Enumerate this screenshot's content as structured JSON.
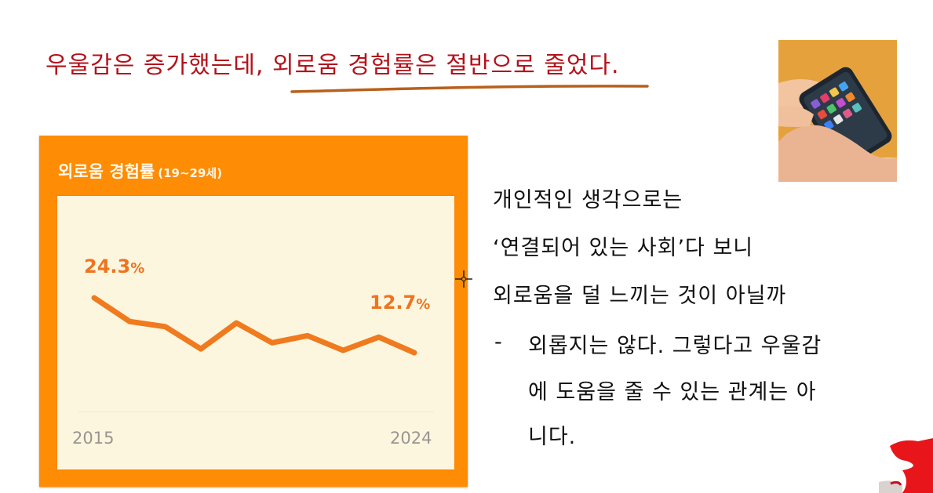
{
  "slide": {
    "headline": "우울감은 증가했는데, 외로움 경험률은 절반으로 줄었다.",
    "colors": {
      "headline": "#b3121b",
      "underline": "#b8601c",
      "card_bg": "#ff8c05",
      "panel_bg": "#fdf6df",
      "line": "#f07a1e",
      "axis_text": "#999590"
    },
    "chart_card": {
      "title": "외로움 경험률",
      "subtitle": "(19~29세)",
      "start_value": "24.3",
      "end_value": "12.7",
      "percent_sign": "%",
      "x_start": "2015",
      "x_end": "2024"
    },
    "commentary": {
      "lines": [
        "개인적인 생각으로는",
        "‘연결되어 있는 사회’다 보니",
        "외로움을 덜 느끼는 것이 아닐까"
      ],
      "bullet_marker": "-",
      "bullet_lines": [
        "외롭지는 않다. 그렇다고 우울감",
        "에 도움을 줄 수 있는 관계는 아",
        "니다."
      ]
    },
    "images": {
      "photo": "hands-holding-smartphone-photo",
      "corner": "red-ribbon-decoration"
    }
  },
  "chart_data": {
    "type": "line",
    "title": "외로움 경험률 (19~29세)",
    "xlabel": "",
    "ylabel": "",
    "x": [
      2015,
      2016,
      2017,
      2018,
      2019,
      2020,
      2021,
      2022,
      2023,
      2024
    ],
    "x_tick_labels": [
      "2015",
      "2024"
    ],
    "series": [
      {
        "name": "외로움 경험률",
        "values": [
          24.3,
          19.3,
          18.2,
          13.5,
          19.0,
          14.8,
          16.3,
          13.2,
          16.0,
          12.7
        ],
        "unit": "%"
      }
    ],
    "annotations": [
      {
        "x": 2015,
        "text": "24.3%"
      },
      {
        "x": 2024,
        "text": "12.7%"
      }
    ],
    "grid": false,
    "legend": "none",
    "ylim": [
      10,
      26
    ]
  }
}
